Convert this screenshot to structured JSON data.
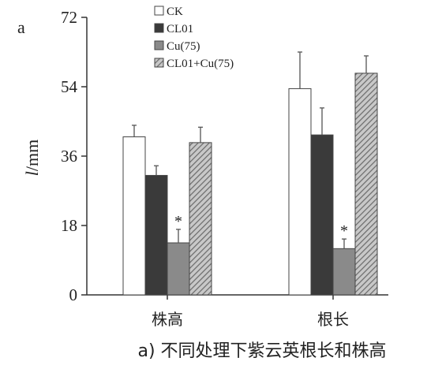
{
  "panel_letter": "a",
  "caption": "a) 不同处理下紫云英根长和株高",
  "colors": {
    "CK": "#ffffff",
    "CL01": "#3a3a3a",
    "Cu75": "#8a8a8a",
    "CL01_Cu75": "#9a9a9a",
    "axis": "#333333"
  },
  "chart_data": {
    "type": "bar",
    "ylabel_italic": "l",
    "ylabel_unit": "/mm",
    "ylim": [
      0,
      72
    ],
    "yticks": [
      "0",
      "18",
      "36",
      "54",
      "72"
    ],
    "categories": [
      "株高",
      "根长"
    ],
    "series": [
      {
        "name": "CK",
        "values": [
          41,
          53.5
        ],
        "errors": [
          3,
          9.5
        ],
        "pattern": "white"
      },
      {
        "name": "CL01",
        "values": [
          31,
          41.5
        ],
        "errors": [
          2.5,
          7
        ],
        "pattern": "dark"
      },
      {
        "name": "Cu(75)",
        "values": [
          13.5,
          12
        ],
        "errors": [
          3.5,
          2.5
        ],
        "pattern": "gray"
      },
      {
        "name": "CL01+Cu(75)",
        "values": [
          39.5,
          57.5
        ],
        "errors": [
          4,
          4.5
        ],
        "pattern": "hatch"
      }
    ],
    "significance": [
      {
        "category": 0,
        "series": 2,
        "mark": "*"
      },
      {
        "category": 1,
        "series": 2,
        "mark": "*"
      }
    ],
    "legend_position": "top-left"
  }
}
